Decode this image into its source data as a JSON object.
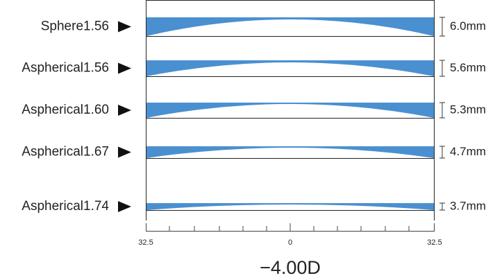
{
  "lenses": [
    {
      "label": "Sphere1.56",
      "thickness": "6.0mm"
    },
    {
      "label": "Aspherical1.56",
      "thickness": "5.6mm"
    },
    {
      "label": "Aspherical1.60",
      "thickness": "5.3mm"
    },
    {
      "label": "Aspherical1.67",
      "thickness": "4.7mm"
    },
    {
      "label": "Aspherical1.74",
      "thickness": "3.7mm"
    }
  ],
  "axis": {
    "ticks": [
      "32.5",
      "0",
      "32.5"
    ]
  },
  "title": "−4.00D"
}
